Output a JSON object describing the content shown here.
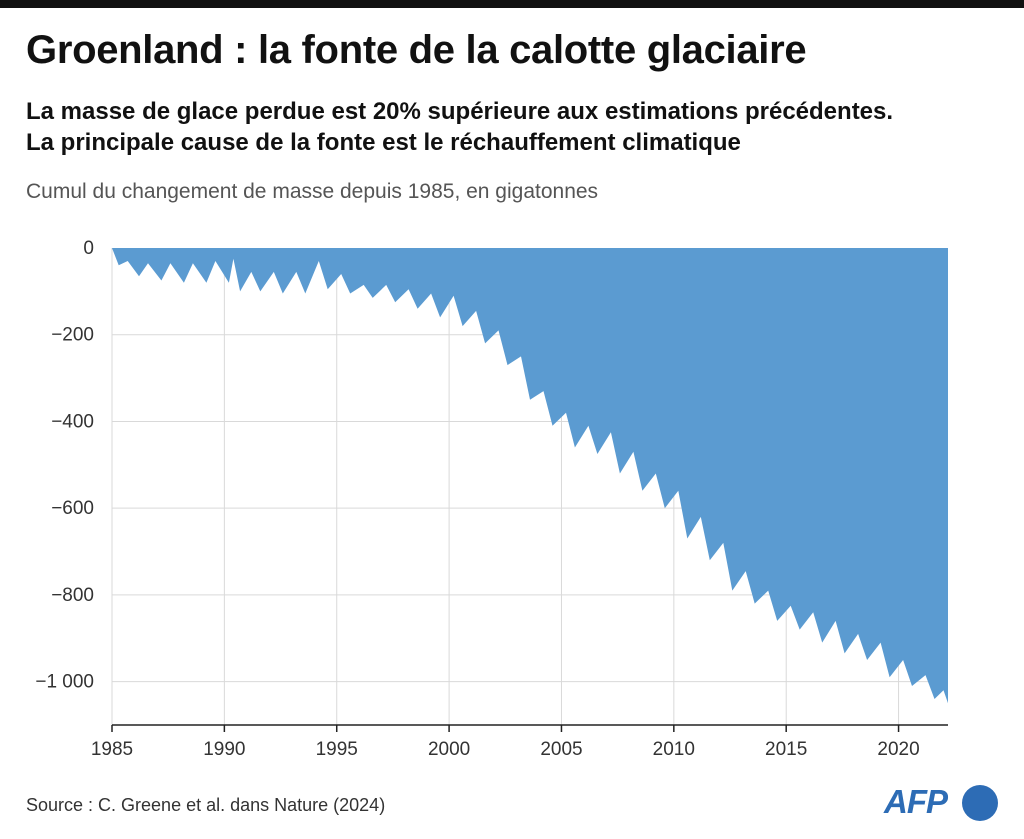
{
  "header": {
    "title": "Groenland : la fonte de la calotte glaciaire",
    "subtitle_line1": "La masse de glace perdue est 20% supérieure aux estimations précédentes.",
    "subtitle_line2": "La principale cause de la fonte est le réchauffement climatique",
    "unit_label": "Cumul du changement de masse depuis 1985, en gigatonnes"
  },
  "footer": {
    "source": "Source : C. Greene et al. dans Nature (2024)",
    "logo_text": "AFP"
  },
  "colors": {
    "area_fill": "#5b9bd1",
    "grid": "#d9d9d9",
    "axis": "#222222",
    "label": "#333333",
    "logo": "#2d6cb5"
  },
  "chart_data": {
    "type": "area",
    "title": "Cumul du changement de masse depuis 1985, en gigatonnes",
    "xlabel": "",
    "ylabel": "",
    "xlim": [
      1985,
      2022.2
    ],
    "ylim": [
      -1100,
      0
    ],
    "grid": true,
    "x_ticks": [
      1985,
      1990,
      1995,
      2000,
      2005,
      2010,
      2015,
      2020
    ],
    "y_ticks": [
      0,
      -200,
      -400,
      -600,
      -800,
      -1000
    ],
    "y_tick_labels": [
      "0",
      "−200",
      "−400",
      "−600",
      "−800",
      "−1 000"
    ],
    "fill_direction": "from zero line down to series",
    "series": [
      {
        "name": "Cumul du changement de masse",
        "x": [
          1985,
          1985.3,
          1985.7,
          1986.2,
          1986.6,
          1987.2,
          1987.6,
          1988.2,
          1988.6,
          1989.2,
          1989.6,
          1990.2,
          1990.4,
          1990.7,
          1991.2,
          1991.6,
          1992.2,
          1992.6,
          1993.2,
          1993.6,
          1994.2,
          1994.6,
          1995.2,
          1995.6,
          1996.2,
          1996.6,
          1997.2,
          1997.6,
          1998.2,
          1998.6,
          1999.2,
          1999.6,
          2000.2,
          2000.6,
          2001.2,
          2001.6,
          2002.2,
          2002.6,
          2003.2,
          2003.6,
          2004.2,
          2004.6,
          2005.2,
          2005.6,
          2006.2,
          2006.6,
          2007.2,
          2007.6,
          2008.2,
          2008.6,
          2009.2,
          2009.6,
          2010.2,
          2010.6,
          2011.2,
          2011.6,
          2012.2,
          2012.6,
          2013.2,
          2013.6,
          2014.2,
          2014.6,
          2015.2,
          2015.6,
          2016.2,
          2016.6,
          2017.2,
          2017.6,
          2018.2,
          2018.6,
          2019.2,
          2019.6,
          2020.2,
          2020.6,
          2021.2,
          2021.6,
          2022.0,
          2022.2
        ],
        "y": [
          0,
          -40,
          -30,
          -65,
          -35,
          -75,
          -35,
          -80,
          -35,
          -80,
          -30,
          -80,
          -25,
          -100,
          -55,
          -100,
          -55,
          -105,
          -55,
          -105,
          -30,
          -95,
          -60,
          -105,
          -85,
          -115,
          -85,
          -125,
          -95,
          -140,
          -105,
          -160,
          -110,
          -180,
          -145,
          -220,
          -190,
          -270,
          -250,
          -350,
          -330,
          -410,
          -380,
          -460,
          -410,
          -475,
          -425,
          -520,
          -470,
          -560,
          -520,
          -600,
          -560,
          -670,
          -620,
          -720,
          -680,
          -790,
          -745,
          -820,
          -790,
          -860,
          -825,
          -880,
          -840,
          -910,
          -860,
          -935,
          -890,
          -950,
          -910,
          -990,
          -950,
          -1010,
          -985,
          -1040,
          -1020,
          -1050
        ]
      }
    ]
  }
}
